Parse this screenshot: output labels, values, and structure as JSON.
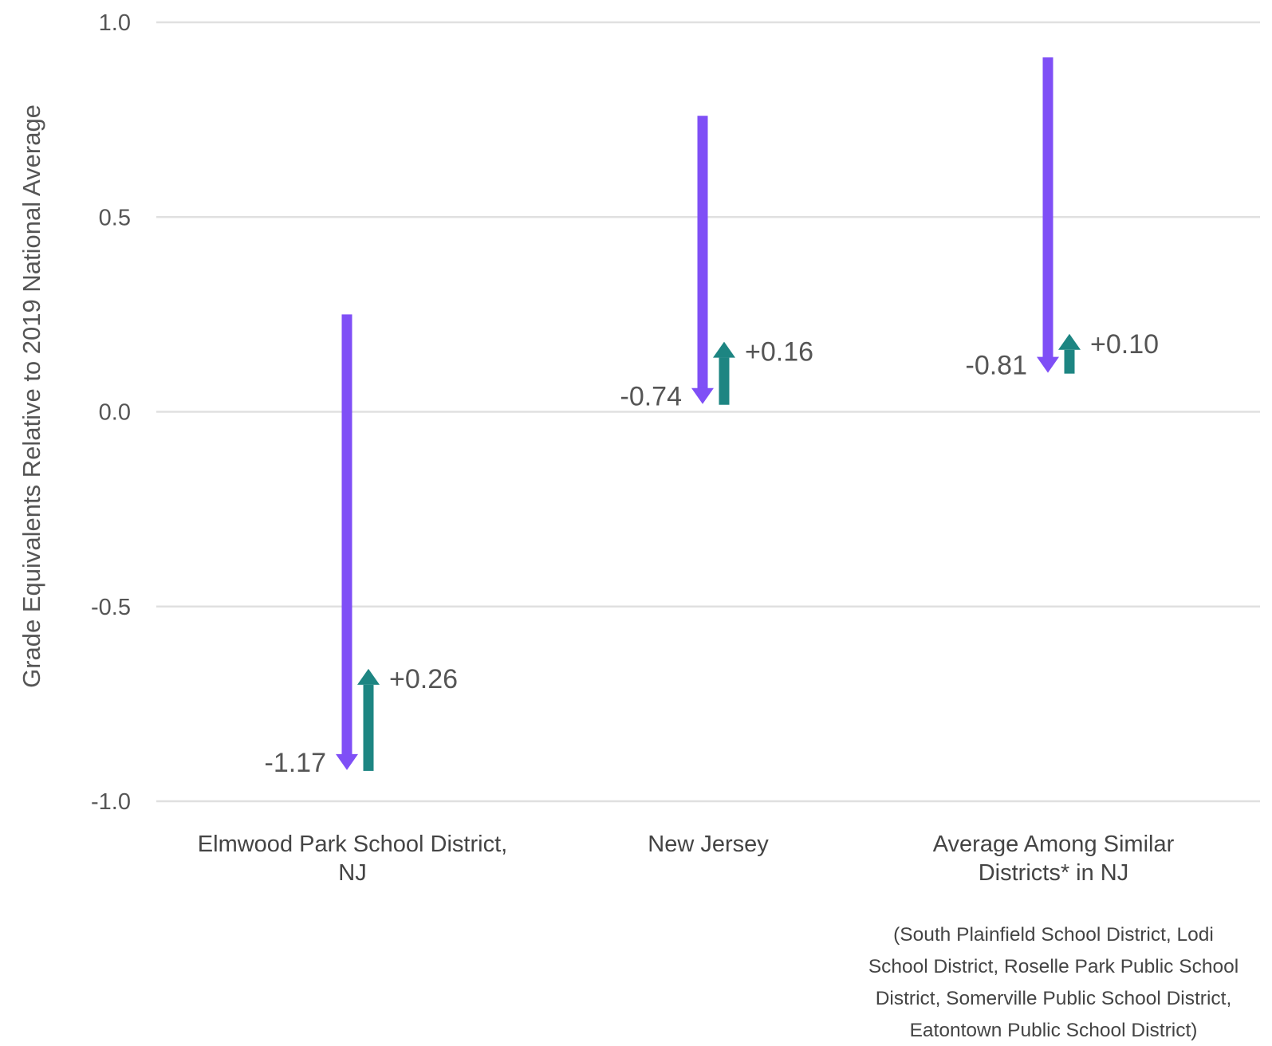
{
  "chart_data": {
    "type": "arrow",
    "ylabel": "Grade Equivalents Relative to 2019 National Average",
    "ylim": [
      -1.0,
      1.0
    ],
    "yticks": [
      1.0,
      0.5,
      0.0,
      -0.5,
      -1.0
    ],
    "ytick_labels": [
      "1.0",
      "0.5",
      "0.0",
      "-0.5",
      "-1.0"
    ],
    "grid": true,
    "categories": [
      {
        "lines": [
          "Elmwood Park School District,",
          "NJ"
        ]
      },
      {
        "lines": [
          "New Jersey"
        ]
      },
      {
        "lines": [
          "Average Among Similar",
          "Districts* in NJ"
        ]
      }
    ],
    "decline": [
      {
        "start": 0.25,
        "end": -0.92,
        "label": "-1.17"
      },
      {
        "start": 0.76,
        "end": 0.02,
        "label": "-0.74"
      },
      {
        "start": 0.91,
        "end": 0.1,
        "label": "-0.81"
      }
    ],
    "recovery": [
      {
        "start": -0.92,
        "end": -0.66,
        "label": "+0.26"
      },
      {
        "start": 0.02,
        "end": 0.18,
        "label": "+0.16"
      },
      {
        "start": 0.1,
        "end": 0.2,
        "label": "+0.10"
      }
    ],
    "colors": {
      "decline": "#7f4ff6",
      "recovery": "#1d8582",
      "grid": "#e0e0e0",
      "text": "#555555"
    },
    "footnote_lines": [
      "(South Plainfield School District, Lodi",
      "School District, Roselle Park Public School",
      "District, Somerville Public School District,",
      "Eatontown Public School District)"
    ]
  }
}
